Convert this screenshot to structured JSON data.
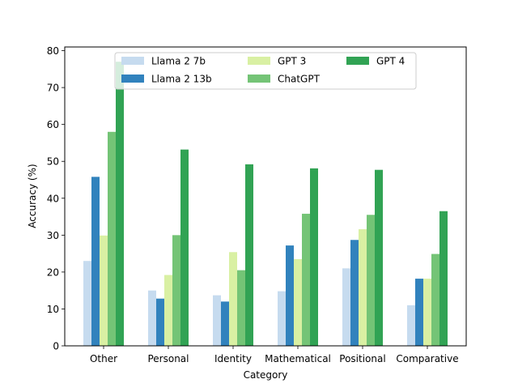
{
  "chart_data": {
    "type": "bar",
    "title": "",
    "xlabel": "Category",
    "ylabel": "Accuracy (%)",
    "ylim": [
      0,
      81
    ],
    "yticks": [
      0,
      10,
      20,
      30,
      40,
      50,
      60,
      70,
      80
    ],
    "ytick_labels": [
      "0",
      "10",
      "20",
      "30",
      "40",
      "50",
      "60",
      "70",
      "80"
    ],
    "categories": [
      "Other",
      "Personal",
      "Identity",
      "Mathematical",
      "Positional",
      "Comparative"
    ],
    "legend_position": "top-center",
    "legend_columns": 3,
    "grid": false,
    "series": [
      {
        "name": "Llama 2 7b",
        "color": "#c6dbef",
        "values": [
          23.0,
          15.0,
          13.7,
          14.8,
          21.0,
          11.0
        ]
      },
      {
        "name": "Llama 2 13b",
        "color": "#3182bd",
        "values": [
          45.8,
          12.8,
          12.0,
          27.2,
          28.7,
          18.2
        ]
      },
      {
        "name": "GPT 3",
        "color": "#d9f0a3",
        "values": [
          29.9,
          19.2,
          25.4,
          23.5,
          31.6,
          18.2
        ]
      },
      {
        "name": "ChatGPT",
        "color": "#74c476",
        "values": [
          58.0,
          30.0,
          20.5,
          35.8,
          35.5,
          24.9
        ]
      },
      {
        "name": "GPT 4",
        "color": "#31a354",
        "values": [
          77.0,
          53.2,
          49.2,
          48.1,
          47.7,
          36.5
        ]
      }
    ]
  }
}
